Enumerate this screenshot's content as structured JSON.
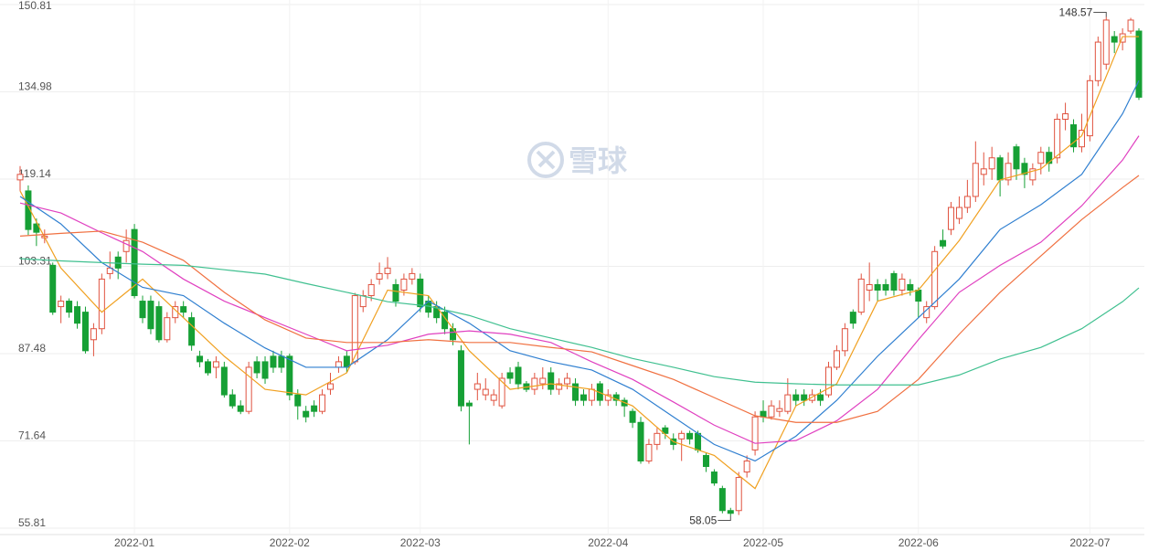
{
  "chart_data": {
    "type": "candlestick",
    "watermark": "雪球",
    "ylim": [
      55.81,
      150.81
    ],
    "yticks": [
      55.81,
      71.64,
      87.48,
      103.31,
      119.14,
      134.98,
      150.81
    ],
    "grid": true,
    "up_color": "#e0523f",
    "down_color": "#16a035",
    "categories": [
      null,
      null,
      null,
      null,
      null,
      null,
      null,
      null,
      null,
      null,
      null,
      null,
      null,
      null,
      "2022-01",
      null,
      null,
      null,
      null,
      null,
      null,
      null,
      null,
      null,
      null,
      null,
      null,
      null,
      null,
      null,
      null,
      null,
      null,
      "2022-02",
      null,
      null,
      null,
      null,
      null,
      null,
      null,
      null,
      null,
      null,
      null,
      null,
      null,
      null,
      null,
      "2022-03",
      null,
      null,
      null,
      null,
      null,
      null,
      null,
      null,
      null,
      null,
      null,
      null,
      null,
      null,
      null,
      null,
      null,
      null,
      null,
      null,
      null,
      null,
      "2022-04",
      null,
      null,
      null,
      null,
      null,
      null,
      null,
      null,
      null,
      null,
      null,
      null,
      null,
      null,
      null,
      null,
      null,
      null,
      "2022-05",
      null,
      null,
      null,
      null,
      null,
      null,
      null,
      null,
      null,
      null,
      null,
      null,
      null,
      null,
      null,
      null,
      null,
      null,
      "2022-06",
      null,
      null,
      null,
      null,
      null,
      null,
      null,
      null,
      null,
      null,
      null,
      null,
      null,
      null,
      null,
      null,
      null,
      null,
      null,
      null,
      "2022-07",
      null,
      null,
      null,
      null,
      null,
      null
    ],
    "open": [
      119,
      117,
      111,
      108.5,
      103.5,
      96,
      97,
      96,
      95,
      90,
      92,
      102,
      105,
      106,
      110,
      97,
      97,
      96,
      90,
      94,
      96,
      94,
      87,
      86,
      85,
      85,
      80,
      78,
      77,
      86,
      86,
      87,
      87,
      87,
      80,
      77,
      78,
      77,
      81,
      85,
      87,
      86,
      96,
      98,
      101,
      102,
      100,
      99,
      101,
      101,
      97,
      96,
      95,
      92,
      88,
      78.5,
      81,
      80,
      79,
      78,
      84,
      85,
      82,
      81,
      82,
      84,
      81,
      82,
      82,
      80,
      79,
      82,
      79,
      80,
      79,
      77,
      75,
      68,
      71,
      74,
      72,
      72,
      73,
      73,
      69,
      66,
      63,
      59,
      59,
      66,
      70,
      77,
      76,
      77,
      77,
      80,
      80,
      79,
      80,
      80,
      85,
      88,
      95,
      95,
      99,
      100,
      100,
      102,
      99,
      100,
      99,
      94,
      96,
      108,
      110,
      112,
      114,
      116,
      120,
      121,
      123,
      119,
      125,
      122,
      119,
      122,
      124,
      123,
      130,
      129,
      125,
      127,
      137,
      140,
      145,
      144,
      146,
      146
    ],
    "high": [
      121.5,
      118,
      112,
      110,
      104,
      98,
      97.5,
      97,
      96,
      93,
      102,
      106,
      106,
      110,
      111,
      98,
      98,
      97,
      95,
      97,
      97,
      95,
      88,
      86.5,
      87,
      86,
      81,
      79,
      86,
      87,
      87,
      88,
      88,
      87.5,
      81,
      78,
      79,
      81,
      84,
      87,
      88,
      98.5,
      99,
      101,
      104,
      105,
      101,
      102,
      103,
      102,
      98,
      97,
      96,
      93,
      89,
      79,
      84,
      83,
      81,
      84,
      85,
      86,
      82.5,
      84,
      85,
      85,
      83,
      84,
      83,
      81,
      82,
      82.5,
      81,
      80.5,
      79.5,
      77.5,
      76,
      72,
      74,
      74.5,
      73,
      73.5,
      73.5,
      73.5,
      69.5,
      66.5,
      63.5,
      59.5,
      66,
      69,
      77,
      79,
      79,
      79,
      83,
      81,
      81,
      81,
      81,
      86,
      89,
      93,
      95.5,
      102,
      104,
      101,
      101,
      102.5,
      102,
      101,
      99.5,
      97,
      107,
      110,
      115,
      116,
      119,
      126,
      124,
      125,
      123.5,
      124,
      125.5,
      123,
      122,
      125,
      125,
      131,
      133,
      130,
      131,
      138,
      145,
      148.57,
      146,
      146.5,
      148.4,
      146.5
    ],
    "low": [
      117,
      109,
      107,
      107.5,
      94.5,
      93,
      94,
      92,
      87.5,
      87,
      91,
      101,
      101,
      104,
      97.5,
      93,
      91,
      89.5,
      89.5,
      93,
      94,
      88,
      85,
      83.5,
      83,
      79.5,
      77.5,
      76.5,
      76.5,
      83,
      82,
      84,
      84,
      79,
      75.5,
      75,
      76,
      76.5,
      80,
      84,
      84,
      85.5,
      95,
      97,
      100,
      101,
      96,
      98,
      100,
      95,
      94,
      93,
      91,
      89,
      77,
      71,
      79,
      79,
      78,
      77.5,
      82,
      81,
      80.5,
      80,
      81,
      80,
      80,
      81,
      78,
      78,
      78,
      78,
      78,
      78,
      76,
      74,
      67.5,
      67.5,
      70,
      72,
      70,
      68,
      71,
      69.5,
      66,
      63.5,
      58.5,
      58.05,
      58.2,
      65,
      69,
      75,
      75.5,
      76,
      76.5,
      78,
      78,
      78.5,
      78,
      79.5,
      84.5,
      87,
      92,
      94.5,
      97,
      97,
      98,
      98,
      98,
      98,
      94,
      93,
      95.5,
      106.5,
      109,
      111,
      113,
      115,
      118,
      119,
      116,
      118,
      119,
      117.5,
      118,
      120,
      120.5,
      122,
      128,
      124,
      124,
      126,
      136,
      139,
      142,
      142.5,
      145.5,
      133.5
    ],
    "close": [
      120,
      110,
      109.5,
      108.8,
      95,
      97,
      95,
      93,
      88,
      92,
      101,
      103,
      103,
      108,
      98,
      94,
      92,
      90,
      94,
      96,
      95,
      89,
      86,
      84,
      86,
      80,
      78,
      77,
      85,
      84,
      83,
      85,
      85,
      80,
      78,
      76,
      77,
      80,
      82,
      86,
      85,
      98,
      98,
      100,
      102,
      103,
      97,
      101,
      102,
      96,
      95,
      94,
      92,
      90,
      78,
      78,
      82,
      81,
      80,
      83,
      83,
      82,
      81,
      83,
      83,
      81,
      82,
      83,
      79,
      79,
      81,
      79,
      80,
      79,
      78,
      75,
      68,
      71,
      73,
      73,
      71,
      73,
      72,
      70,
      67,
      64,
      59,
      58.5,
      65,
      68,
      76,
      76,
      78,
      77.5,
      80,
      79,
      79,
      80,
      79,
      85,
      88,
      92,
      93,
      101,
      100,
      99,
      99,
      99,
      101,
      99,
      97,
      96,
      106,
      107,
      114,
      114,
      116,
      122,
      121,
      123,
      119,
      122,
      121,
      120,
      121,
      124,
      122,
      130,
      131,
      125,
      128,
      137,
      144,
      148,
      144,
      145.5,
      148,
      134
    ],
    "annotations": [
      {
        "value": 148.57
      },
      {
        "value": 58.05
      }
    ],
    "series": [
      {
        "color": "#f0a020",
        "x": [
          0,
          5,
          10,
          15,
          20,
          25,
          30,
          35,
          40,
          45,
          50,
          55,
          60,
          65,
          70,
          75,
          80,
          85,
          90,
          95,
          100,
          105,
          110,
          115,
          120,
          125,
          130,
          135,
          137
        ],
        "values": [
          117,
          103,
          95,
          101,
          94,
          87,
          81,
          80,
          84,
          99,
          98,
          88,
          81,
          82,
          81,
          78,
          71.5,
          69,
          63,
          78,
          82,
          97,
          99,
          108,
          119,
          121,
          127,
          145,
          145
        ]
      },
      {
        "color": "#2f7fd0",
        "x": [
          0,
          5,
          10,
          15,
          20,
          25,
          30,
          35,
          40,
          45,
          50,
          55,
          60,
          65,
          70,
          75,
          80,
          85,
          90,
          95,
          100,
          105,
          110,
          115,
          120,
          125,
          130,
          135,
          137
        ],
        "values": [
          116,
          111,
          104,
          99.5,
          98,
          93,
          88.5,
          85,
          85,
          90,
          97,
          93,
          88,
          86,
          84.5,
          81,
          76,
          71,
          68,
          72.5,
          79,
          87,
          94,
          101,
          110,
          114.5,
          120,
          131,
          137
        ]
      },
      {
        "color": "#e040c0",
        "x": [
          0,
          5,
          10,
          15,
          20,
          25,
          30,
          35,
          40,
          45,
          50,
          55,
          60,
          65,
          70,
          75,
          80,
          85,
          90,
          95,
          100,
          105,
          110,
          115,
          120,
          125,
          130,
          135,
          137
        ],
        "values": [
          114.8,
          113,
          109.4,
          106,
          101,
          97,
          94,
          91,
          88,
          89,
          91,
          91.6,
          91,
          89.5,
          86,
          82.8,
          78.7,
          74.5,
          71.2,
          71.7,
          75.3,
          81,
          90,
          98.6,
          103.5,
          107.7,
          114.3,
          122.6,
          127
        ]
      },
      {
        "color": "#f07040",
        "x": [
          0,
          5,
          10,
          15,
          20,
          25,
          30,
          35,
          40,
          45,
          50,
          55,
          60,
          65,
          70,
          75,
          80,
          85,
          90,
          95,
          100,
          105,
          110,
          115,
          120,
          125,
          130,
          135,
          137
        ],
        "values": [
          108.8,
          109.3,
          109.7,
          107.7,
          104.4,
          98.6,
          93.6,
          90.3,
          89.5,
          89.5,
          90,
          89.5,
          89.5,
          88.6,
          87.8,
          85.3,
          82.8,
          79.5,
          76.2,
          75,
          75,
          77,
          82.8,
          91,
          98.6,
          105.2,
          111.8,
          117.6,
          119.8
        ]
      },
      {
        "color": "#40c090",
        "x": [
          0,
          5,
          10,
          15,
          20,
          25,
          30,
          35,
          40,
          45,
          50,
          55,
          60,
          65,
          70,
          75,
          80,
          85,
          90,
          95,
          100,
          105,
          110,
          115,
          120,
          125,
          130,
          135,
          137
        ],
        "values": [
          104.7,
          104.3,
          104,
          103.7,
          103.5,
          102.7,
          101.9,
          100.2,
          98.6,
          96.9,
          96.1,
          94.4,
          92,
          90.3,
          88.6,
          86.6,
          85,
          83.3,
          82.3,
          82,
          81.8,
          81.8,
          81.8,
          83.6,
          86.5,
          88.6,
          92,
          96.9,
          99.4
        ]
      }
    ]
  }
}
